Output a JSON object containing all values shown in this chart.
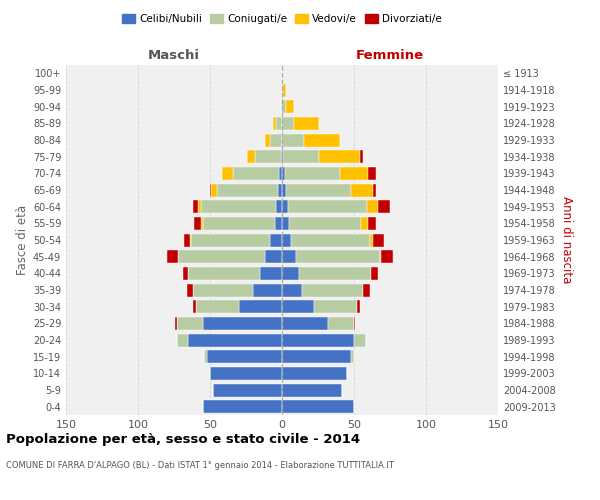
{
  "age_groups": [
    "0-4",
    "5-9",
    "10-14",
    "15-19",
    "20-24",
    "25-29",
    "30-34",
    "35-39",
    "40-44",
    "45-49",
    "50-54",
    "55-59",
    "60-64",
    "65-69",
    "70-74",
    "75-79",
    "80-84",
    "85-89",
    "90-94",
    "95-99",
    "100+"
  ],
  "birth_years": [
    "2009-2013",
    "2004-2008",
    "1999-2003",
    "1994-1998",
    "1989-1993",
    "1984-1988",
    "1979-1983",
    "1974-1978",
    "1969-1973",
    "1964-1968",
    "1959-1963",
    "1954-1958",
    "1949-1953",
    "1944-1948",
    "1939-1943",
    "1934-1938",
    "1929-1933",
    "1924-1928",
    "1919-1923",
    "1914-1918",
    "≤ 1913"
  ],
  "male": {
    "celibi": [
      55,
      48,
      50,
      52,
      65,
      55,
      30,
      20,
      15,
      12,
      8,
      5,
      4,
      3,
      2,
      1,
      0,
      0,
      0,
      0,
      0
    ],
    "coniugati": [
      0,
      0,
      0,
      2,
      8,
      18,
      30,
      42,
      50,
      60,
      55,
      50,
      52,
      42,
      32,
      18,
      8,
      4,
      1,
      0,
      0
    ],
    "vedovi": [
      0,
      0,
      0,
      0,
      0,
      0,
      0,
      0,
      0,
      0,
      1,
      1,
      2,
      4,
      8,
      5,
      4,
      2,
      0,
      0,
      0
    ],
    "divorziati": [
      0,
      0,
      0,
      0,
      0,
      1,
      2,
      4,
      4,
      8,
      4,
      5,
      4,
      1,
      0,
      0,
      0,
      0,
      0,
      0,
      0
    ]
  },
  "female": {
    "nubili": [
      50,
      42,
      45,
      48,
      50,
      32,
      22,
      14,
      12,
      10,
      6,
      5,
      4,
      3,
      2,
      1,
      0,
      0,
      0,
      0,
      0
    ],
    "coniugate": [
      0,
      0,
      0,
      2,
      8,
      18,
      30,
      42,
      50,
      58,
      55,
      50,
      55,
      45,
      38,
      25,
      15,
      8,
      3,
      1,
      0
    ],
    "vedove": [
      0,
      0,
      0,
      0,
      0,
      0,
      0,
      0,
      0,
      1,
      2,
      5,
      8,
      15,
      20,
      28,
      25,
      18,
      5,
      2,
      0
    ],
    "divorziate": [
      0,
      0,
      0,
      0,
      0,
      1,
      2,
      5,
      5,
      8,
      8,
      5,
      8,
      2,
      5,
      2,
      0,
      0,
      0,
      0,
      0
    ]
  },
  "colors": {
    "celibi": "#4472c4",
    "coniugati": "#b8cca4",
    "vedovi": "#ffc000",
    "divorziati": "#c00000"
  },
  "title": "Popolazione per età, sesso e stato civile - 2014",
  "subtitle": "COMUNE DI FARRA D'ALPAGO (BL) - Dati ISTAT 1° gennaio 2014 - Elaborazione TUTTITALIA.IT",
  "xlabel_left": "Maschi",
  "xlabel_right": "Femmine",
  "ylabel_left": "Fasce di età",
  "ylabel_right": "Anni di nascita",
  "xlim": 150,
  "bg_color": "#ffffff",
  "plot_bg": "#f0f0f0",
  "grid_color": "#cccccc"
}
